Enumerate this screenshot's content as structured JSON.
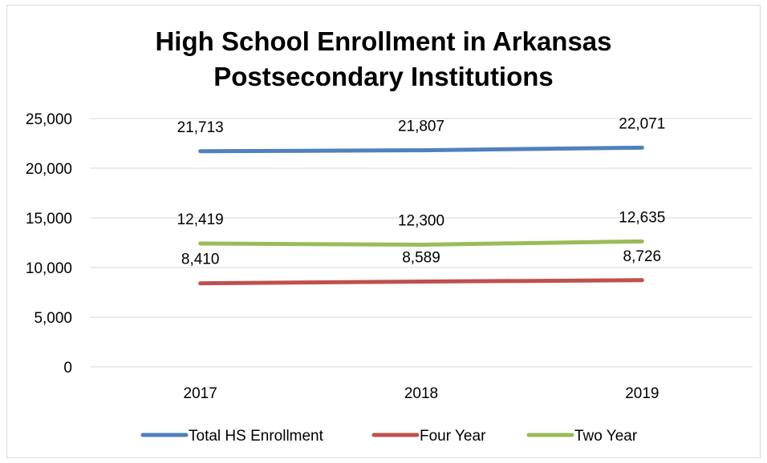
{
  "chart_data": {
    "type": "line",
    "title_line1": "High School Enrollment in Arkansas",
    "title_line2": "Postsecondary Institutions",
    "xlabel": "",
    "ylabel": "",
    "categories": [
      "2017",
      "2018",
      "2019"
    ],
    "ylim": [
      0,
      25000
    ],
    "yticks": [
      "0",
      "5,000",
      "10,000",
      "15,000",
      "20,000",
      "25,000"
    ],
    "grid": true,
    "legend_position": "bottom",
    "series": [
      {
        "name": "Total HS Enrollment",
        "color": "#4f81bd",
        "values": [
          21713,
          21807,
          22071
        ],
        "labels": [
          "21,713",
          "21,807",
          "22,071"
        ]
      },
      {
        "name": "Four Year",
        "color": "#c0504d",
        "values": [
          8410,
          8589,
          8726
        ],
        "labels": [
          "8,410",
          "8,589",
          "8,726"
        ]
      },
      {
        "name": "Two Year",
        "color": "#9bbb59",
        "values": [
          12419,
          12300,
          12635
        ],
        "labels": [
          "12,419",
          "12,300",
          "12,635"
        ]
      }
    ]
  }
}
